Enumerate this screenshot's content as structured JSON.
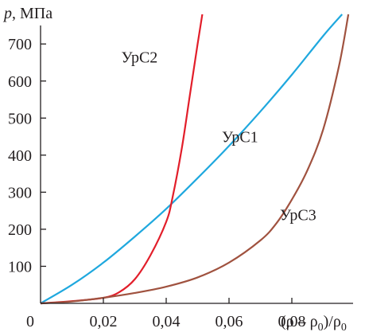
{
  "chart_data": {
    "type": "line",
    "title": "",
    "ylabel_var": "p",
    "ylabel_unit": ", МПа",
    "xlabel": "(ρ – ρ0)/ρ0",
    "xlabel_parts": {
      "open": "(ρ – ρ",
      "sub1": "0",
      "mid": ")/ρ",
      "sub2": "0"
    },
    "xlim": [
      0,
      0.1
    ],
    "ylim": [
      0,
      780
    ],
    "x_ticks": [
      {
        "value": 0,
        "label": "0"
      },
      {
        "value": 0.02,
        "label": "0,02"
      },
      {
        "value": 0.04,
        "label": "0,04"
      },
      {
        "value": 0.06,
        "label": "0,06"
      },
      {
        "value": 0.08,
        "label": "0,08"
      }
    ],
    "y_ticks": [
      {
        "value": 100,
        "label": "100"
      },
      {
        "value": 200,
        "label": "200"
      },
      {
        "value": 300,
        "label": "300"
      },
      {
        "value": 400,
        "label": "400"
      },
      {
        "value": 500,
        "label": "500"
      },
      {
        "value": 600,
        "label": "600"
      },
      {
        "value": 700,
        "label": "700"
      }
    ],
    "grid": false,
    "legend": "none",
    "series": [
      {
        "name": "УрС1",
        "color": "#1fa8de",
        "x": [
          0,
          0.01,
          0.02,
          0.03,
          0.04,
          0.05,
          0.06,
          0.07,
          0.08,
          0.09,
          0.096
        ],
        "y": [
          0,
          50,
          110,
          180,
          255,
          338,
          425,
          518,
          617,
          722,
          780
        ]
      },
      {
        "name": "УрС2",
        "color": "#e21e2a",
        "x": [
          0,
          0.01,
          0.02,
          0.025,
          0.03,
          0.035,
          0.04,
          0.042,
          0.045,
          0.0475,
          0.05,
          0.0515
        ],
        "y": [
          0,
          6,
          15,
          30,
          65,
          130,
          220,
          285,
          420,
          560,
          700,
          780
        ]
      },
      {
        "name": "УрС3",
        "color": "#a0523f",
        "x": [
          0,
          0.01,
          0.02,
          0.03,
          0.04,
          0.05,
          0.06,
          0.07,
          0.075,
          0.08,
          0.085,
          0.09,
          0.095,
          0.098
        ],
        "y": [
          0,
          5,
          15,
          28,
          45,
          70,
          110,
          170,
          215,
          280,
          360,
          470,
          640,
          780
        ]
      }
    ],
    "annotations": [
      {
        "text": "УрС2",
        "series": "УрС2",
        "x": 0.0315,
        "y": 650
      },
      {
        "text": "УрС1",
        "series": "УрС1",
        "x": 0.0635,
        "y": 435
      },
      {
        "text": "УрС3",
        "series": "УрС3",
        "x": 0.082,
        "y": 225
      }
    ]
  }
}
